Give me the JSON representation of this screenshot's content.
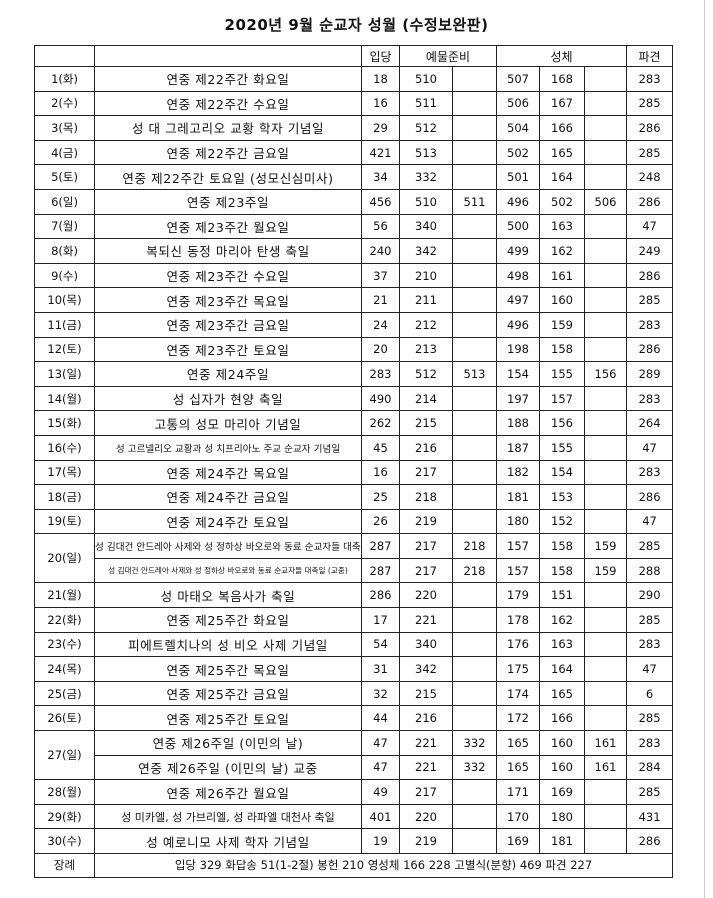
{
  "title": "2020년 9월 순교자 성월 (수정보완판)",
  "headers": {
    "date": "",
    "name": "",
    "entrance": "입당",
    "offertory": "예물준비",
    "communion": "성체",
    "dismissal": "파견"
  },
  "rows": [
    {
      "date": "1(화)",
      "entries": [
        {
          "name": "연중 제22주간 화요일",
          "values": [
            "18",
            "510",
            "",
            "507",
            "168",
            "",
            "283"
          ]
        }
      ]
    },
    {
      "date": "2(수)",
      "entries": [
        {
          "name": "연중 제22주간 수요일",
          "values": [
            "16",
            "511",
            "",
            "506",
            "167",
            "",
            "285"
          ]
        }
      ]
    },
    {
      "date": "3(목)",
      "entries": [
        {
          "name": "성 대 그레고리오 교황 학자 기념일",
          "values": [
            "29",
            "512",
            "",
            "504",
            "166",
            "",
            "286"
          ]
        }
      ]
    },
    {
      "date": "4(금)",
      "entries": [
        {
          "name": "연중 제22주간 금요일",
          "values": [
            "421",
            "513",
            "",
            "502",
            "165",
            "",
            "285"
          ]
        }
      ]
    },
    {
      "date": "5(토)",
      "entries": [
        {
          "name": "연중 제22주간 토요일 (성모신심미사)",
          "values": [
            "34",
            "332",
            "",
            "501",
            "164",
            "",
            "248"
          ]
        }
      ]
    },
    {
      "date": "6(일)",
      "entries": [
        {
          "name": "연중 제23주일",
          "values": [
            "456",
            "510",
            "511",
            "496",
            "502",
            "506",
            "286"
          ]
        }
      ]
    },
    {
      "date": "7(월)",
      "entries": [
        {
          "name": "연중 제23주간 월요일",
          "values": [
            "56",
            "340",
            "",
            "500",
            "163",
            "",
            "47"
          ]
        }
      ]
    },
    {
      "date": "8(화)",
      "entries": [
        {
          "name": "복되신 동정 마리아 탄생 축일",
          "values": [
            "240",
            "342",
            "",
            "499",
            "162",
            "",
            "249"
          ]
        }
      ]
    },
    {
      "date": "9(수)",
      "entries": [
        {
          "name": "연중 제23주간 수요일",
          "values": [
            "37",
            "210",
            "",
            "498",
            "161",
            "",
            "286"
          ]
        }
      ]
    },
    {
      "date": "10(목)",
      "entries": [
        {
          "name": "연중 제23주간 목요일",
          "values": [
            "21",
            "211",
            "",
            "497",
            "160",
            "",
            "285"
          ]
        }
      ]
    },
    {
      "date": "11(금)",
      "entries": [
        {
          "name": "연중 제23주간 금요일",
          "values": [
            "24",
            "212",
            "",
            "496",
            "159",
            "",
            "283"
          ]
        }
      ]
    },
    {
      "date": "12(토)",
      "entries": [
        {
          "name": "연중 제23주간 토요일",
          "values": [
            "20",
            "213",
            "",
            "198",
            "158",
            "",
            "286"
          ]
        }
      ]
    },
    {
      "date": "13(일)",
      "entries": [
        {
          "name": "연중 제24주일",
          "values": [
            "283",
            "512",
            "513",
            "154",
            "155",
            "156",
            "289"
          ]
        }
      ]
    },
    {
      "date": "14(월)",
      "entries": [
        {
          "name": "성 십자가 현양 축일",
          "values": [
            "490",
            "214",
            "",
            "197",
            "157",
            "",
            "283"
          ]
        }
      ]
    },
    {
      "date": "15(화)",
      "entries": [
        {
          "name": "고통의 성모 마리아 기념일",
          "values": [
            "262",
            "215",
            "",
            "188",
            "156",
            "",
            "264"
          ]
        }
      ]
    },
    {
      "date": "16(수)",
      "entries": [
        {
          "name": "성 고르넬리오 교황과 성 치프리아노 주교 순교자 기념일",
          "values": [
            "45",
            "216",
            "",
            "187",
            "155",
            "",
            "47"
          ]
        }
      ]
    },
    {
      "date": "17(목)",
      "entries": [
        {
          "name": "연중 제24주간 목요일",
          "values": [
            "16",
            "217",
            "",
            "182",
            "154",
            "",
            "283"
          ]
        }
      ]
    },
    {
      "date": "18(금)",
      "entries": [
        {
          "name": "연중 제24주간 금요일",
          "values": [
            "25",
            "218",
            "",
            "181",
            "153",
            "",
            "286"
          ]
        }
      ]
    },
    {
      "date": "19(토)",
      "entries": [
        {
          "name": "연중 제24주간 토요일",
          "values": [
            "26",
            "219",
            "",
            "180",
            "152",
            "",
            "47"
          ]
        }
      ]
    },
    {
      "date": "20(일)",
      "entries": [
        {
          "name": "성 김대건 안드레아 사제와 성 정하상 바오로와 동료 순교자들 대축일",
          "values": [
            "287",
            "217",
            "218",
            "157",
            "158",
            "159",
            "285"
          ]
        },
        {
          "name": "성 김대건 안드레아 사제와 성 정하상 바오로와 동료 순교자들 대축일 (교중)",
          "values": [
            "287",
            "217",
            "218",
            "157",
            "158",
            "159",
            "288"
          ]
        }
      ]
    },
    {
      "date": "21(월)",
      "entries": [
        {
          "name": "성 마태오 복음사가 축일",
          "values": [
            "286",
            "220",
            "",
            "179",
            "151",
            "",
            "290"
          ]
        }
      ]
    },
    {
      "date": "22(화)",
      "entries": [
        {
          "name": "연중 제25주간 화요일",
          "values": [
            "17",
            "221",
            "",
            "178",
            "162",
            "",
            "285"
          ]
        }
      ]
    },
    {
      "date": "23(수)",
      "entries": [
        {
          "name": "피에트렐치나의 성 비오 사제 기념일",
          "values": [
            "54",
            "340",
            "",
            "176",
            "163",
            "",
            "283"
          ]
        }
      ]
    },
    {
      "date": "24(목)",
      "entries": [
        {
          "name": "연중 제25주간 목요일",
          "values": [
            "31",
            "342",
            "",
            "175",
            "164",
            "",
            "47"
          ]
        }
      ]
    },
    {
      "date": "25(금)",
      "entries": [
        {
          "name": "연중 제25주간 금요일",
          "values": [
            "32",
            "215",
            "",
            "174",
            "165",
            "",
            "6"
          ]
        }
      ]
    },
    {
      "date": "26(토)",
      "entries": [
        {
          "name": "연중 제25주간 토요일",
          "values": [
            "44",
            "216",
            "",
            "172",
            "166",
            "",
            "285"
          ]
        }
      ]
    },
    {
      "date": "27(일)",
      "entries": [
        {
          "name": "연중 제26주일 (이민의 날)",
          "values": [
            "47",
            "221",
            "332",
            "165",
            "160",
            "161",
            "283"
          ]
        },
        {
          "name": "연중 제26주일 (이민의 날) 교중",
          "values": [
            "47",
            "221",
            "332",
            "165",
            "160",
            "161",
            "284"
          ]
        }
      ]
    },
    {
      "date": "28(월)",
      "entries": [
        {
          "name": "연중 제26주간 월요일",
          "values": [
            "49",
            "217",
            "",
            "171",
            "169",
            "",
            "285"
          ]
        }
      ]
    },
    {
      "date": "29(화)",
      "entries": [
        {
          "name": "성 미카엘, 성 가브리엘, 성 라파엘 대천사 축일",
          "values": [
            "401",
            "220",
            "",
            "170",
            "180",
            "",
            "431"
          ]
        }
      ]
    },
    {
      "date": "30(수)",
      "entries": [
        {
          "name": "성 예로니모 사제 학자 기념일",
          "values": [
            "19",
            "219",
            "",
            "169",
            "181",
            "",
            "286"
          ]
        }
      ]
    }
  ],
  "footer": {
    "label": "장례",
    "text": "입당 329 화답송 51(1-2절) 봉헌 210 영성체 166 228 고별식(분향) 469 파견 227"
  }
}
